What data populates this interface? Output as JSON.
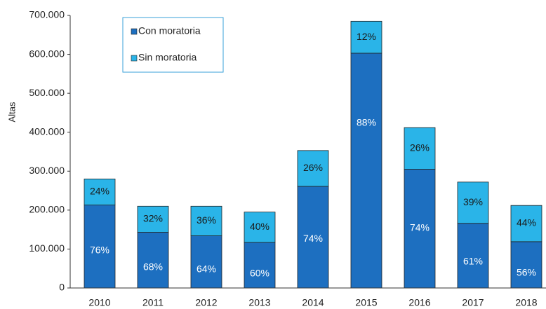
{
  "chart_data": {
    "type": "stacked_bar",
    "y_label": "Altas",
    "categories": [
      "2010",
      "2011",
      "2012",
      "2013",
      "2014",
      "2015",
      "2016",
      "2017",
      "2018"
    ],
    "series": [
      {
        "name": "Con moratoria",
        "color": "#1d6fc0",
        "values": [
          213000,
          143000,
          134000,
          117000,
          261000,
          603000,
          305000,
          166000,
          119000
        ],
        "share_labels": [
          "76%",
          "68%",
          "64%",
          "60%",
          "74%",
          "88%",
          "74%",
          "61%",
          "56%"
        ]
      },
      {
        "name": "Sin moratoria",
        "color": "#2ab4e8",
        "values": [
          67000,
          67000,
          76000,
          78000,
          92000,
          82000,
          107000,
          106000,
          93000
        ],
        "share_labels": [
          "24%",
          "32%",
          "36%",
          "40%",
          "26%",
          "12%",
          "26%",
          "39%",
          "44%"
        ]
      }
    ],
    "ylim": [
      0,
      700000
    ],
    "yticks": [
      0,
      {
        "value": 100000,
        "label": "100.000"
      },
      {
        "value": 200000,
        "label": "200.000"
      },
      {
        "value": 300000,
        "label": "300.000"
      },
      {
        "value": 400000,
        "label": "400.000"
      },
      {
        "value": 500000,
        "label": "500.000"
      },
      {
        "value": 600000,
        "label": "600.000"
      },
      {
        "value": 700000,
        "label": "700.000"
      }
    ],
    "legend": "top-left",
    "grid": false
  }
}
